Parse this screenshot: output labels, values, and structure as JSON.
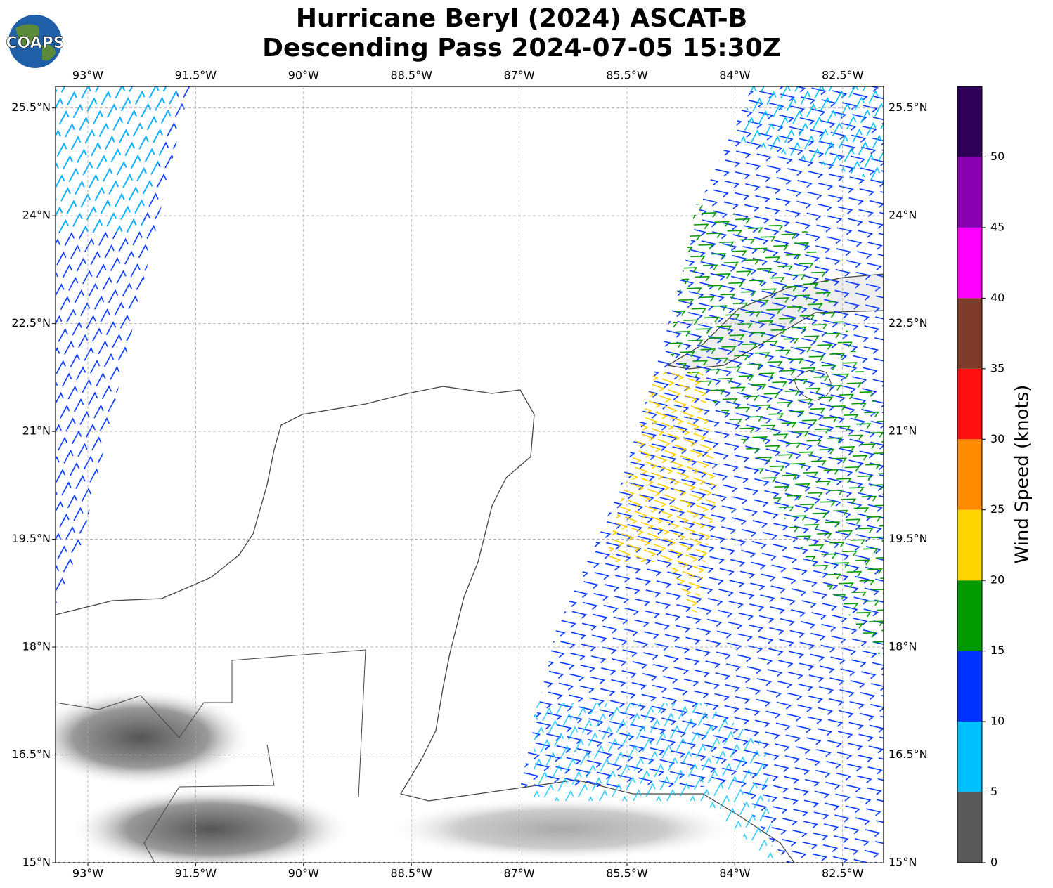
{
  "logo": "COAPS",
  "title": [
    "Hurricane Beryl (2024) ASCAT-B",
    "Descending Pass 2024-07-05 15:30Z"
  ],
  "map": {
    "xlim": [
      -93.45,
      -81.93
    ],
    "ylim": [
      15,
      25.8
    ],
    "xticks": [
      {
        "value": -93,
        "label": "93°W"
      },
      {
        "value": -91.5,
        "label": "91.5°W"
      },
      {
        "value": -90,
        "label": "90°W"
      },
      {
        "value": -88.5,
        "label": "88.5°W"
      },
      {
        "value": -87,
        "label": "87°W"
      },
      {
        "value": -85.5,
        "label": "85.5°W"
      },
      {
        "value": -84,
        "label": "84°W"
      },
      {
        "value": -82.5,
        "label": "82.5°W"
      }
    ],
    "yticks": [
      {
        "value": 15,
        "label": "15°N"
      },
      {
        "value": 16.5,
        "label": "16.5°N"
      },
      {
        "value": 18,
        "label": "18°N"
      },
      {
        "value": 19.5,
        "label": "19.5°N"
      },
      {
        "value": 21,
        "label": "21°N"
      },
      {
        "value": 22.5,
        "label": "22.5°N"
      },
      {
        "value": 24,
        "label": "24°N"
      },
      {
        "value": 25.5,
        "label": "25.5°N"
      }
    ],
    "grid": true
  },
  "colorbar": {
    "label": "Wind Speed (knots)",
    "lim": [
      0,
      55
    ],
    "bounds": [
      0,
      5,
      10,
      15,
      20,
      25,
      30,
      35,
      40,
      45,
      50,
      55
    ],
    "colors": [
      "#595959",
      "#00bfff",
      "#0033ff",
      "#009900",
      "#ffd700",
      "#ff8c00",
      "#ff1010",
      "#7f3b2a",
      "#ff00ff",
      "#8800b0",
      "#2e0057"
    ],
    "ticks": [
      0,
      5,
      10,
      15,
      20,
      25,
      30,
      35,
      40,
      45,
      50
    ]
  }
}
